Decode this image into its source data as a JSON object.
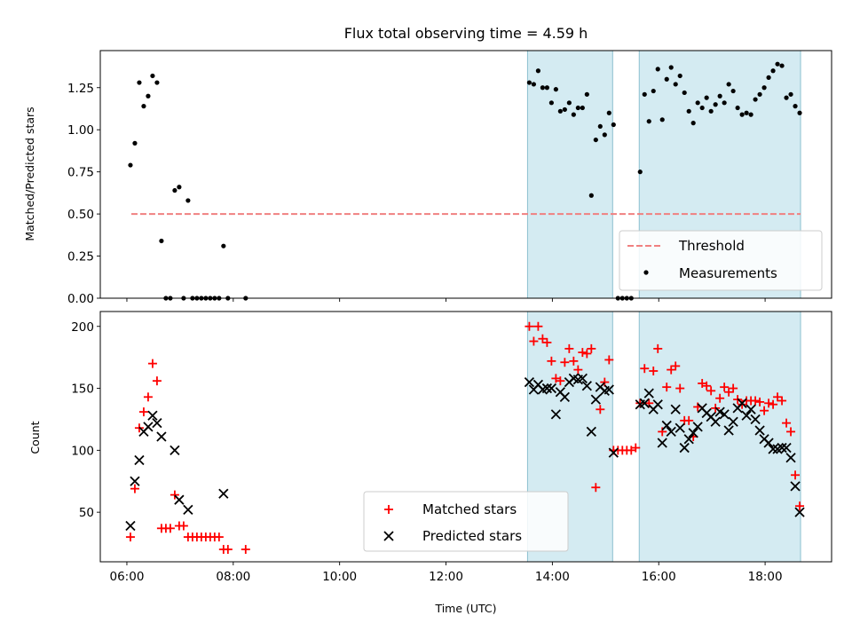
{
  "figure": {
    "title": "Flux total observing time = 4.59 h"
  },
  "chart_data": [
    {
      "type": "scatter",
      "panel": "top",
      "ylabel": "Matched/Predicted stars",
      "ylim": [
        0,
        1.47
      ],
      "yticks": [
        0,
        0.25,
        0.5,
        0.75,
        1.0,
        1.25
      ],
      "ytick_labels": [
        "0.00",
        "0.25",
        "0.50",
        "0.75",
        "1.00",
        "1.25"
      ],
      "threshold": {
        "name": "Threshold",
        "y": 0.5,
        "x_start": "06:05",
        "x_end": "18:40",
        "color": "#f08080"
      },
      "shaded_intervals": [
        [
          "13:32",
          "15:08"
        ],
        [
          "15:38",
          "18:40"
        ]
      ],
      "legend": {
        "placement": "lower-right",
        "entries": [
          "Threshold",
          "Measurements"
        ]
      },
      "series": [
        {
          "name": "Measurements",
          "color": "#000000",
          "points": [
            [
              "06:04",
              0.79
            ],
            [
              "06:09",
              0.92
            ],
            [
              "06:14",
              1.28
            ],
            [
              "06:19",
              1.14
            ],
            [
              "06:24",
              1.2
            ],
            [
              "06:29",
              1.32
            ],
            [
              "06:34",
              1.28
            ],
            [
              "06:39",
              0.34
            ],
            [
              "06:44",
              0.0
            ],
            [
              "06:49",
              0.0
            ],
            [
              "06:54",
              0.64
            ],
            [
              "06:59",
              0.66
            ],
            [
              "07:04",
              0.0
            ],
            [
              "07:09",
              0.58
            ],
            [
              "07:14",
              0.0
            ],
            [
              "07:19",
              0.0
            ],
            [
              "07:24",
              0.0
            ],
            [
              "07:29",
              0.0
            ],
            [
              "07:34",
              0.0
            ],
            [
              "07:39",
              0.0
            ],
            [
              "07:44",
              0.0
            ],
            [
              "07:49",
              0.31
            ],
            [
              "07:54",
              0.0
            ],
            [
              "08:14",
              0.0
            ],
            [
              "13:34",
              1.28
            ],
            [
              "13:39",
              1.27
            ],
            [
              "13:44",
              1.35
            ],
            [
              "13:49",
              1.25
            ],
            [
              "13:54",
              1.25
            ],
            [
              "13:59",
              1.16
            ],
            [
              "14:04",
              1.24
            ],
            [
              "14:09",
              1.11
            ],
            [
              "14:14",
              1.12
            ],
            [
              "14:19",
              1.16
            ],
            [
              "14:24",
              1.09
            ],
            [
              "14:29",
              1.13
            ],
            [
              "14:34",
              1.13
            ],
            [
              "14:39",
              1.21
            ],
            [
              "14:44",
              0.61
            ],
            [
              "14:49",
              0.94
            ],
            [
              "14:54",
              1.02
            ],
            [
              "14:59",
              0.97
            ],
            [
              "15:04",
              1.1
            ],
            [
              "15:09",
              1.03
            ],
            [
              "15:14",
              0.0
            ],
            [
              "15:19",
              0.0
            ],
            [
              "15:24",
              0.0
            ],
            [
              "15:29",
              0.0
            ],
            [
              "15:39",
              0.75
            ],
            [
              "15:44",
              1.21
            ],
            [
              "15:49",
              1.05
            ],
            [
              "15:54",
              1.23
            ],
            [
              "15:59",
              1.36
            ],
            [
              "16:04",
              1.06
            ],
            [
              "16:09",
              1.3
            ],
            [
              "16:14",
              1.37
            ],
            [
              "16:19",
              1.27
            ],
            [
              "16:24",
              1.32
            ],
            [
              "16:29",
              1.22
            ],
            [
              "16:34",
              1.11
            ],
            [
              "16:39",
              1.04
            ],
            [
              "16:44",
              1.16
            ],
            [
              "16:49",
              1.13
            ],
            [
              "16:54",
              1.19
            ],
            [
              "16:59",
              1.11
            ],
            [
              "17:04",
              1.15
            ],
            [
              "17:09",
              1.2
            ],
            [
              "17:14",
              1.16
            ],
            [
              "17:19",
              1.27
            ],
            [
              "17:24",
              1.23
            ],
            [
              "17:29",
              1.13
            ],
            [
              "17:34",
              1.09
            ],
            [
              "17:39",
              1.1
            ],
            [
              "17:44",
              1.09
            ],
            [
              "17:49",
              1.18
            ],
            [
              "17:54",
              1.21
            ],
            [
              "17:59",
              1.25
            ],
            [
              "18:04",
              1.31
            ],
            [
              "18:09",
              1.35
            ],
            [
              "18:14",
              1.39
            ],
            [
              "18:19",
              1.38
            ],
            [
              "18:24",
              1.19
            ],
            [
              "18:29",
              1.21
            ],
            [
              "18:34",
              1.14
            ],
            [
              "18:39",
              1.1
            ]
          ]
        }
      ]
    },
    {
      "type": "scatter",
      "panel": "bottom",
      "ylabel": "Count",
      "xlabel": "Time (UTC)",
      "ylim": [
        10,
        212
      ],
      "yticks": [
        50,
        100,
        150,
        200
      ],
      "ytick_labels": [
        "50",
        "100",
        "150",
        "200"
      ],
      "xlim": [
        "05:30",
        "19:15"
      ],
      "xticks": [
        "06:00",
        "08:00",
        "10:00",
        "12:00",
        "14:00",
        "16:00",
        "18:00"
      ],
      "shaded_intervals": [
        [
          "13:32",
          "15:08"
        ],
        [
          "15:38",
          "18:40"
        ]
      ],
      "legend": {
        "placement": "lower-center",
        "entries": [
          "Matched stars",
          "Predicted stars"
        ]
      },
      "series": [
        {
          "name": "Matched stars",
          "marker": "+",
          "color": "#ff0000",
          "points": [
            [
              "06:04",
              30
            ],
            [
              "06:09",
              69
            ],
            [
              "06:14",
              118
            ],
            [
              "06:19",
              131
            ],
            [
              "06:24",
              143
            ],
            [
              "06:29",
              170
            ],
            [
              "06:34",
              156
            ],
            [
              "06:39",
              37
            ],
            [
              "06:44",
              37
            ],
            [
              "06:49",
              37
            ],
            [
              "06:54",
              64
            ],
            [
              "06:59",
              39
            ],
            [
              "07:04",
              39
            ],
            [
              "07:09",
              30
            ],
            [
              "07:14",
              30
            ],
            [
              "07:19",
              30
            ],
            [
              "07:24",
              30
            ],
            [
              "07:29",
              30
            ],
            [
              "07:34",
              30
            ],
            [
              "07:39",
              30
            ],
            [
              "07:44",
              30
            ],
            [
              "07:49",
              20
            ],
            [
              "07:54",
              20
            ],
            [
              "08:14",
              20
            ],
            [
              "13:34",
              200
            ],
            [
              "13:39",
              188
            ],
            [
              "13:44",
              200
            ],
            [
              "13:49",
              190
            ],
            [
              "13:54",
              187
            ],
            [
              "13:59",
              172
            ],
            [
              "14:04",
              158
            ],
            [
              "14:09",
              156
            ],
            [
              "14:14",
              171
            ],
            [
              "14:19",
              182
            ],
            [
              "14:24",
              172
            ],
            [
              "14:29",
              165
            ],
            [
              "14:34",
              179
            ],
            [
              "14:39",
              178
            ],
            [
              "14:44",
              182
            ],
            [
              "14:49",
              70
            ],
            [
              "14:54",
              133
            ],
            [
              "14:59",
              155
            ],
            [
              "15:04",
              173
            ],
            [
              "15:09",
              100
            ],
            [
              "15:14",
              100
            ],
            [
              "15:19",
              100
            ],
            [
              "15:24",
              100
            ],
            [
              "15:29",
              100
            ],
            [
              "15:34",
              102
            ],
            [
              "15:39",
              138
            ],
            [
              "15:44",
              166
            ],
            [
              "15:49",
              138
            ],
            [
              "15:54",
              164
            ],
            [
              "15:59",
              182
            ],
            [
              "16:04",
              115
            ],
            [
              "16:09",
              151
            ],
            [
              "16:14",
              165
            ],
            [
              "16:19",
              168
            ],
            [
              "16:24",
              150
            ],
            [
              "16:29",
              124
            ],
            [
              "16:34",
              124
            ],
            [
              "16:39",
              111
            ],
            [
              "16:44",
              135
            ],
            [
              "16:49",
              154
            ],
            [
              "16:54",
              152
            ],
            [
              "16:59",
              148
            ],
            [
              "17:04",
              134
            ],
            [
              "17:09",
              142
            ],
            [
              "17:14",
              151
            ],
            [
              "17:19",
              147
            ],
            [
              "17:24",
              150
            ],
            [
              "17:29",
              141
            ],
            [
              "17:34",
              137
            ],
            [
              "17:39",
              140
            ],
            [
              "17:44",
              140
            ],
            [
              "17:49",
              140
            ],
            [
              "17:54",
              139
            ],
            [
              "17:59",
              132
            ],
            [
              "18:04",
              138
            ],
            [
              "18:09",
              137
            ],
            [
              "18:14",
              143
            ],
            [
              "18:19",
              140
            ],
            [
              "18:24",
              122
            ],
            [
              "18:29",
              115
            ],
            [
              "18:34",
              80
            ],
            [
              "18:39",
              55
            ]
          ]
        },
        {
          "name": "Predicted stars",
          "marker": "x",
          "color": "#000000",
          "points": [
            [
              "06:04",
              39
            ],
            [
              "06:09",
              75
            ],
            [
              "06:14",
              92
            ],
            [
              "06:19",
              115
            ],
            [
              "06:24",
              119
            ],
            [
              "06:29",
              128
            ],
            [
              "06:34",
              122
            ],
            [
              "06:39",
              111
            ],
            [
              "06:54",
              100
            ],
            [
              "06:59",
              60
            ],
            [
              "07:09",
              52
            ],
            [
              "07:49",
              65
            ],
            [
              "13:34",
              155
            ],
            [
              "13:39",
              149
            ],
            [
              "13:44",
              153
            ],
            [
              "13:49",
              149
            ],
            [
              "13:54",
              150
            ],
            [
              "13:59",
              150
            ],
            [
              "14:04",
              129
            ],
            [
              "14:09",
              147
            ],
            [
              "14:14",
              143
            ],
            [
              "14:19",
              155
            ],
            [
              "14:24",
              158
            ],
            [
              "14:29",
              157
            ],
            [
              "14:34",
              158
            ],
            [
              "14:39",
              152
            ],
            [
              "14:44",
              115
            ],
            [
              "14:49",
              141
            ],
            [
              "14:54",
              151
            ],
            [
              "14:59",
              148
            ],
            [
              "15:04",
              149
            ],
            [
              "15:09",
              98
            ],
            [
              "15:39",
              137
            ],
            [
              "15:44",
              138
            ],
            [
              "15:49",
              146
            ],
            [
              "15:54",
              133
            ],
            [
              "15:59",
              137
            ],
            [
              "16:04",
              106
            ],
            [
              "16:09",
              120
            ],
            [
              "16:14",
              115
            ],
            [
              "16:19",
              133
            ],
            [
              "16:24",
              118
            ],
            [
              "16:29",
              102
            ],
            [
              "16:34",
              109
            ],
            [
              "16:39",
              114
            ],
            [
              "16:44",
              119
            ],
            [
              "16:49",
              134
            ],
            [
              "16:54",
              130
            ],
            [
              "16:59",
              127
            ],
            [
              "17:04",
              123
            ],
            [
              "17:09",
              131
            ],
            [
              "17:14",
              129
            ],
            [
              "17:19",
              116
            ],
            [
              "17:24",
              123
            ],
            [
              "17:29",
              134
            ],
            [
              "17:34",
              138
            ],
            [
              "17:39",
              128
            ],
            [
              "17:44",
              133
            ],
            [
              "17:49",
              125
            ],
            [
              "17:54",
              116
            ],
            [
              "17:59",
              109
            ],
            [
              "18:04",
              106
            ],
            [
              "18:09",
              101
            ],
            [
              "18:14",
              101
            ],
            [
              "18:19",
              102
            ],
            [
              "18:24",
              102
            ],
            [
              "18:29",
              94
            ],
            [
              "18:34",
              71
            ],
            [
              "18:39",
              50
            ]
          ]
        }
      ]
    }
  ]
}
